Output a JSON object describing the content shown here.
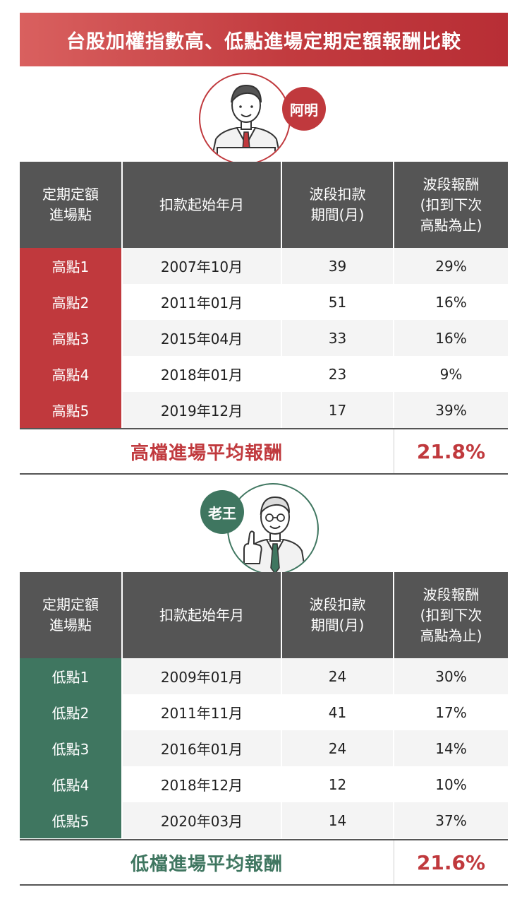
{
  "title": "台股加權指數高、低點進場定期定額報酬比較",
  "colors": {
    "red": "#c0393d",
    "green": "#3f7660",
    "header_gray": "#555555"
  },
  "headers": [
    "定期定額\n進場點",
    "扣款起始年月",
    "波段扣款\n期間(月)",
    "波段報酬\n(扣到下次\n高點為止)"
  ],
  "high": {
    "person": "阿明",
    "rows": [
      [
        "高點1",
        "2007年10月",
        "39",
        "29%"
      ],
      [
        "高點2",
        "2011年01月",
        "51",
        "16%"
      ],
      [
        "高點3",
        "2015年04月",
        "33",
        "16%"
      ],
      [
        "高點4",
        "2018年01月",
        "23",
        "9%"
      ],
      [
        "高點5",
        "2019年12月",
        "17",
        "39%"
      ]
    ],
    "summary_label": "高檔進場平均報酬",
    "summary_value": "21.8%"
  },
  "low": {
    "person": "老王",
    "rows": [
      [
        "低點1",
        "2009年01月",
        "24",
        "30%"
      ],
      [
        "低點2",
        "2011年11月",
        "41",
        "17%"
      ],
      [
        "低點3",
        "2016年01月",
        "24",
        "14%"
      ],
      [
        "低點4",
        "2018年12月",
        "12",
        "10%"
      ],
      [
        "低點5",
        "2020年03月",
        "14",
        "37%"
      ]
    ],
    "summary_label": "低檔進場平均報酬",
    "summary_value": "21.6%"
  }
}
